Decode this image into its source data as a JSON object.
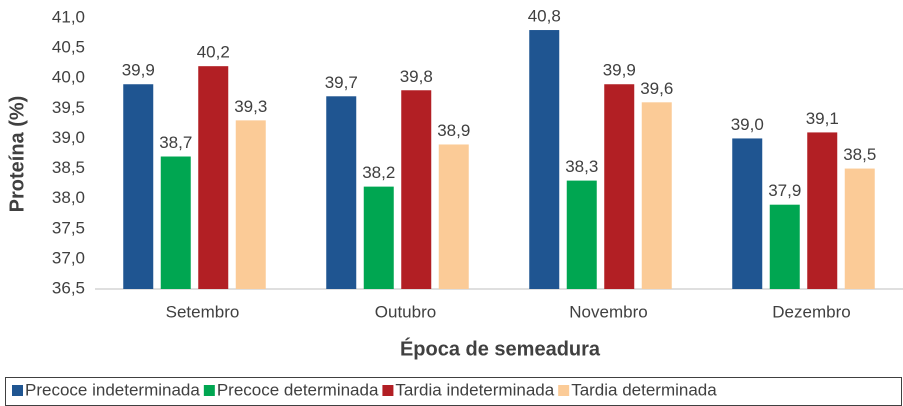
{
  "chart_data": {
    "type": "bar",
    "y_label": "Proteína (%)",
    "x_label": "Época de semeadura",
    "categories": [
      "Setembro",
      "Outubro",
      "Novembro",
      "Dezembro"
    ],
    "series": [
      {
        "name": "Precoce indeterminada",
        "color": "#1f5591",
        "values": [
          39.9,
          39.7,
          40.8,
          39.0
        ],
        "value_labels": [
          "39,9",
          "39,7",
          "40,8",
          "39,0"
        ]
      },
      {
        "name": "Precoce determinada",
        "color": "#00a651",
        "values": [
          38.7,
          38.2,
          38.3,
          37.9
        ],
        "value_labels": [
          "38,7",
          "38,2",
          "38,3",
          "37,9"
        ]
      },
      {
        "name": "Tardia indeterminada",
        "color": "#b21f24",
        "values": [
          40.2,
          39.8,
          39.9,
          39.1
        ],
        "value_labels": [
          "40,2",
          "39,8",
          "39,9",
          "39,1"
        ]
      },
      {
        "name": "Tardia determinada",
        "color": "#fbcb97",
        "values": [
          39.3,
          38.9,
          39.6,
          38.5
        ],
        "value_labels": [
          "39,3",
          "38,9",
          "39,6",
          "38,5"
        ]
      }
    ],
    "ylim": [
      36.5,
      41.0
    ],
    "yticks": [
      {
        "value": 36.5,
        "label": "36,5"
      },
      {
        "value": 37.0,
        "label": "37,0"
      },
      {
        "value": 37.5,
        "label": "37,5"
      },
      {
        "value": 38.0,
        "label": "38,0"
      },
      {
        "value": 38.5,
        "label": "38,5"
      },
      {
        "value": 39.0,
        "label": "39,0"
      },
      {
        "value": 39.5,
        "label": "39,5"
      },
      {
        "value": 40.0,
        "label": "40,0"
      },
      {
        "value": 40.5,
        "label": "40,5"
      },
      {
        "value": 41.0,
        "label": "41,0"
      }
    ],
    "grid": false,
    "legend": "bottom"
  }
}
